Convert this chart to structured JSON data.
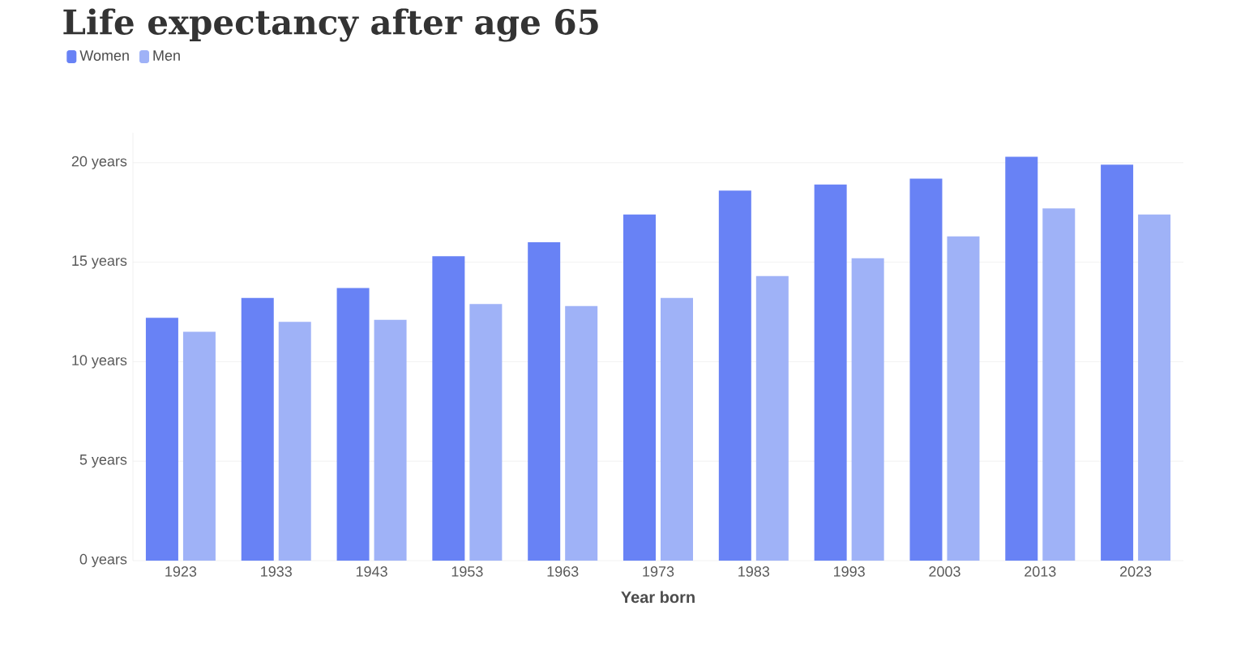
{
  "chart_data": {
    "type": "bar",
    "title": "Life expectancy after age 65",
    "xlabel": "Year born",
    "categories": [
      "1923",
      "1933",
      "1943",
      "1953",
      "1963",
      "1973",
      "1983",
      "1993",
      "2003",
      "2013",
      "2023"
    ],
    "series": [
      {
        "name": "Women",
        "color": "#6882f5",
        "values": [
          12.2,
          13.2,
          13.7,
          15.3,
          16.0,
          17.4,
          18.6,
          18.9,
          19.2,
          20.3,
          19.9
        ]
      },
      {
        "name": "Men",
        "color": "#9fb2f7",
        "values": [
          11.5,
          12.0,
          12.1,
          12.9,
          12.8,
          13.2,
          14.3,
          15.2,
          16.3,
          17.7,
          17.4
        ]
      }
    ],
    "ylim": [
      0,
      21.5
    ],
    "yticks": [
      {
        "value": 0,
        "label": "0 years"
      },
      {
        "value": 5,
        "label": "5 years"
      },
      {
        "value": 10,
        "label": "10 years"
      },
      {
        "value": 15,
        "label": "15 years"
      },
      {
        "value": 20,
        "label": "20 years"
      }
    ],
    "grid": "y",
    "legend": "top left"
  }
}
